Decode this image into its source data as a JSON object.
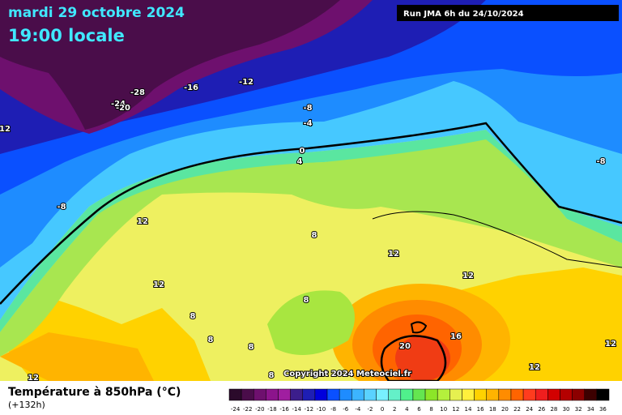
{
  "header": {
    "date": "mardi 29 octobre 2024",
    "time": "19:00 locale",
    "run": "Run JMA 6h du 24/10/2024"
  },
  "map": {
    "contour_labels": [
      -28,
      -16,
      -12,
      -24,
      -20,
      12,
      -8,
      -4,
      0,
      4,
      -8,
      12,
      8,
      12,
      12,
      12,
      8,
      8,
      8,
      8,
      16,
      20,
      12,
      12,
      -8,
      12,
      8
    ]
  },
  "copyright": "Copyright 2024 Meteociel.fr",
  "footer": {
    "title": "Température à 850hPa (°C)",
    "lead": "(+132h)"
  },
  "legend": {
    "items": [
      {
        "value": -24,
        "color": "#2b0a2b"
      },
      {
        "value": -22,
        "color": "#4a0d4a"
      },
      {
        "value": -20,
        "color": "#6e106e"
      },
      {
        "value": -18,
        "color": "#8c148c"
      },
      {
        "value": -16,
        "color": "#a01ea0"
      },
      {
        "value": -14,
        "color": "#3c1e8c"
      },
      {
        "value": -12,
        "color": "#1e1eb4"
      },
      {
        "value": -10,
        "color": "#0000dc"
      },
      {
        "value": -8,
        "color": "#0a50ff"
      },
      {
        "value": -6,
        "color": "#1e8cff"
      },
      {
        "value": -4,
        "color": "#3cb4ff"
      },
      {
        "value": -2,
        "color": "#5ad2ff"
      },
      {
        "value": 0,
        "color": "#78f0ff"
      },
      {
        "value": 2,
        "color": "#64f0c8"
      },
      {
        "value": 4,
        "color": "#50f08c"
      },
      {
        "value": 6,
        "color": "#64e650"
      },
      {
        "value": 8,
        "color": "#8ce628"
      },
      {
        "value": 10,
        "color": "#b4f03c"
      },
      {
        "value": 12,
        "color": "#e6f050"
      },
      {
        "value": 14,
        "color": "#fff03c"
      },
      {
        "value": 16,
        "color": "#ffd200"
      },
      {
        "value": 18,
        "color": "#ffb400"
      },
      {
        "value": 20,
        "color": "#ff8c00"
      },
      {
        "value": 22,
        "color": "#ff6400"
      },
      {
        "value": 24,
        "color": "#ff3c1e"
      },
      {
        "value": 26,
        "color": "#f01e1e"
      },
      {
        "value": 28,
        "color": "#d20000"
      },
      {
        "value": 30,
        "color": "#b40000"
      },
      {
        "value": 32,
        "color": "#8c0000"
      },
      {
        "value": 34,
        "color": "#3c0000"
      },
      {
        "value": 36,
        "color": "#000000"
      }
    ]
  }
}
